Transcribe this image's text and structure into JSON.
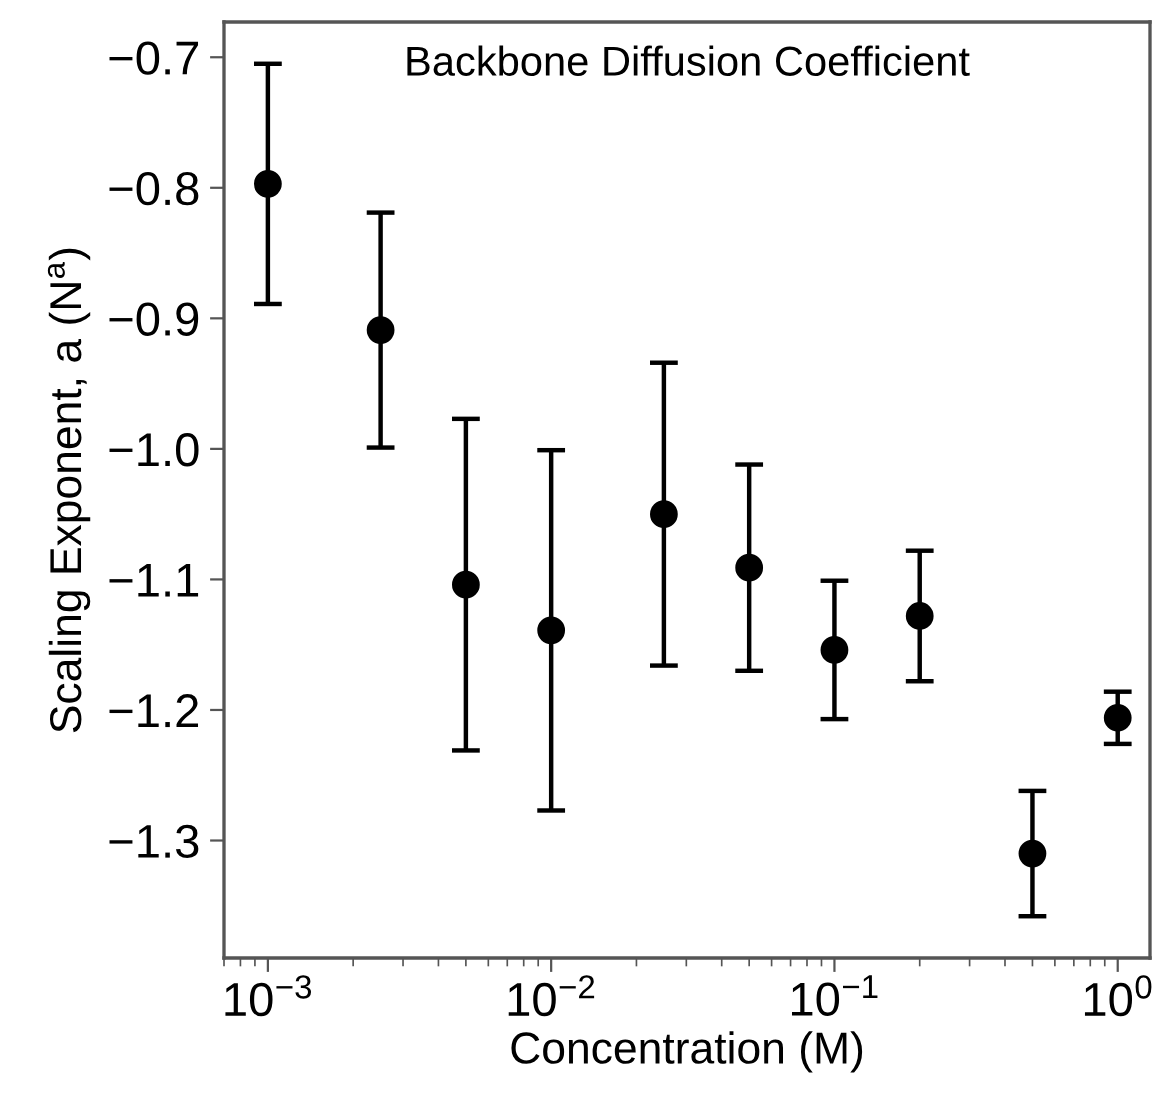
{
  "chart_data": {
    "type": "scatter",
    "title": "Backbone Diffusion Coefficient",
    "xlabel": "Concentration (M)",
    "ylabel": "Scaling Exponent, a (N$^{a}$)",
    "x": [
      0.001,
      0.0025,
      0.005,
      0.01,
      0.025,
      0.05,
      0.1,
      0.2,
      0.5,
      1
    ],
    "series": [
      {
        "color": "#000000",
        "values": [
          -0.797,
          -0.909,
          -1.104,
          -1.139,
          -1.05,
          -1.091,
          -1.154,
          -1.128,
          -1.31,
          -1.206
        ],
        "errors": [
          0.092,
          0.09,
          0.127,
          0.138,
          0.116,
          0.079,
          0.053,
          0.05,
          0.048,
          0.02
        ]
      }
    ],
    "log": "x",
    "marker": "circle",
    "grid": false,
    "xlim": [
      0.0007,
      1.3
    ],
    "ylim": [
      -1.39,
      -0.673
    ],
    "xticks": [
      {
        "value": 0.001,
        "label": "10$^{−3}$"
      },
      {
        "value": 0.01,
        "label": "10$^{−2}$"
      },
      {
        "value": 0.1,
        "label": "10$^{−1}$"
      },
      {
        "value": 1,
        "label": "10$^{0}$"
      }
    ],
    "yticks": [
      {
        "value": -1.3,
        "label": "−1.3"
      },
      {
        "value": -1.2,
        "label": "−1.2"
      },
      {
        "value": -1.1,
        "label": "−1.1"
      },
      {
        "value": -1.0,
        "label": "−1.0"
      },
      {
        "value": -0.9,
        "label": "−0.9"
      },
      {
        "value": -0.8,
        "label": "−0.8"
      },
      {
        "value": -0.7,
        "label": "−0.7"
      }
    ]
  }
}
